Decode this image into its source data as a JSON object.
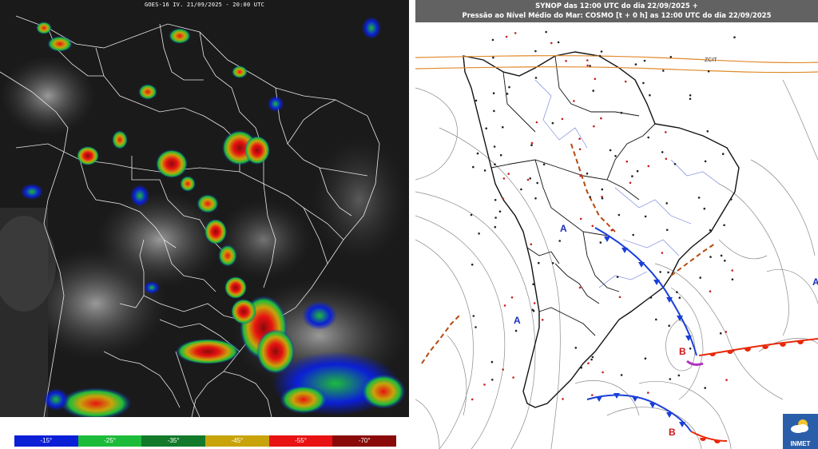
{
  "satellite": {
    "header": "GOES-16 IV. 21/09/2025 - 20:00 UTC",
    "colors": {
      "land_borders": "#e8e8e8",
      "background": "#1a1a1a"
    }
  },
  "legend": {
    "items": [
      {
        "label": "-15°",
        "color": "#0b1fd6"
      },
      {
        "label": "-25°",
        "color": "#1dbb3a"
      },
      {
        "label": "-35°",
        "color": "#127a2a"
      },
      {
        "label": "-45°",
        "color": "#c8a40a"
      },
      {
        "label": "-55°",
        "color": "#e81212"
      },
      {
        "label": "-70°",
        "color": "#8a0a0a"
      }
    ]
  },
  "synop": {
    "title_line1": "SYNOP das 12:00 UTC do dia 22/09/2025 +",
    "title_line2": "Pressão ao Nível Médio do Mar: COSMO [t + 0 h] as 12:00 UTC do dia 22/09/2025",
    "pressure_centers": [
      {
        "label": "A",
        "color": "#1a2fb8"
      },
      {
        "label": "A",
        "color": "#1a2fb8"
      },
      {
        "label": "A",
        "color": "#1a2fb8"
      },
      {
        "label": "B",
        "color": "#d21414"
      },
      {
        "label": "B",
        "color": "#d21414"
      }
    ],
    "itcz_label": "ZCIT",
    "logo": "INMET",
    "colors": {
      "cold_front": "#1a3fd9",
      "warm_front": "#e8280a",
      "trough": "#b4490e",
      "itcz": "#e08a2a",
      "isobar": "#8a8a8a"
    }
  }
}
